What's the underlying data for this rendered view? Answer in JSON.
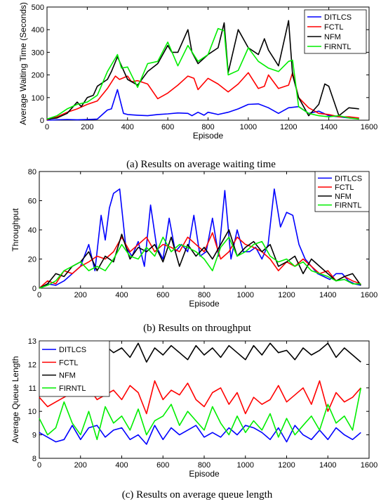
{
  "chart_data": [
    {
      "type": "line",
      "caption": "(a) Results on average waiting time",
      "xlabel": "Episode",
      "ylabel": "Average Waiting Time (Seconds)",
      "xlim": [
        0,
        1600
      ],
      "ylim": [
        0,
        500
      ],
      "xticks": [
        "0",
        "200",
        "400",
        "600",
        "800",
        "1000",
        "1200",
        "1400",
        "1600"
      ],
      "yticks": [
        "0",
        "100",
        "200",
        "300",
        "400",
        "500"
      ],
      "legend_position": "top-right",
      "series": [
        {
          "name": "DITLCS",
          "color": "#0000ff",
          "x": [
            0,
            50,
            100,
            150,
            200,
            250,
            300,
            320,
            350,
            380,
            400,
            450,
            500,
            550,
            600,
            650,
            700,
            720,
            750,
            780,
            800,
            850,
            900,
            950,
            1000,
            1050,
            1100,
            1150,
            1200,
            1250,
            1300,
            1350,
            1400,
            1450,
            1500,
            1550
          ],
          "y": [
            0,
            2,
            3,
            2,
            3,
            5,
            45,
            50,
            135,
            30,
            25,
            22,
            20,
            25,
            28,
            32,
            30,
            20,
            35,
            22,
            35,
            25,
            35,
            50,
            70,
            72,
            55,
            30,
            55,
            60,
            30,
            40,
            20,
            15,
            10,
            8
          ]
        },
        {
          "name": "FCTL",
          "color": "#ff0000",
          "x": [
            0,
            50,
            100,
            150,
            200,
            250,
            300,
            340,
            360,
            400,
            420,
            450,
            500,
            550,
            600,
            650,
            700,
            730,
            750,
            800,
            850,
            900,
            950,
            1000,
            1050,
            1080,
            1100,
            1150,
            1200,
            1220,
            1250,
            1300,
            1350,
            1400,
            1450,
            1500,
            1550
          ],
          "y": [
            2,
            15,
            35,
            50,
            70,
            85,
            140,
            195,
            180,
            195,
            170,
            175,
            160,
            95,
            120,
            155,
            195,
            185,
            135,
            185,
            160,
            125,
            160,
            210,
            140,
            150,
            200,
            140,
            155,
            210,
            100,
            55,
            30,
            25,
            15,
            15,
            10
          ]
        },
        {
          "name": "NFM",
          "color": "#000000",
          "x": [
            0,
            50,
            100,
            150,
            170,
            200,
            230,
            250,
            300,
            320,
            350,
            400,
            450,
            500,
            550,
            600,
            620,
            650,
            700,
            720,
            750,
            800,
            850,
            880,
            900,
            950,
            1000,
            1050,
            1080,
            1100,
            1150,
            1200,
            1220,
            1250,
            1300,
            1350,
            1380,
            1400,
            1450,
            1500,
            1550
          ],
          "y": [
            5,
            10,
            30,
            80,
            60,
            100,
            110,
            150,
            180,
            215,
            280,
            180,
            155,
            215,
            250,
            330,
            300,
            300,
            400,
            300,
            250,
            290,
            320,
            430,
            210,
            400,
            320,
            290,
            360,
            310,
            240,
            440,
            200,
            100,
            20,
            70,
            160,
            150,
            20,
            55,
            50
          ]
        },
        {
          "name": "FIRNTL",
          "color": "#00ee00",
          "x": [
            0,
            50,
            100,
            150,
            200,
            250,
            300,
            350,
            370,
            400,
            450,
            500,
            550,
            600,
            650,
            700,
            750,
            800,
            850,
            880,
            900,
            950,
            1000,
            1050,
            1100,
            1150,
            1200,
            1220,
            1250,
            1300,
            1350,
            1400,
            1450,
            1500,
            1550
          ],
          "y": [
            5,
            20,
            50,
            70,
            80,
            110,
            215,
            290,
            230,
            235,
            145,
            250,
            260,
            345,
            240,
            330,
            260,
            290,
            405,
            395,
            200,
            220,
            320,
            260,
            230,
            215,
            260,
            265,
            60,
            30,
            20,
            15,
            20,
            10,
            5
          ]
        }
      ]
    },
    {
      "type": "line",
      "caption": "(b) Results on throughput",
      "xlabel": "Episode",
      "ylabel": "Throughput",
      "xlim": [
        0,
        1600
      ],
      "ylim": [
        0,
        80
      ],
      "xticks": [
        "0",
        "200",
        "400",
        "600",
        "800",
        "1000",
        "1200",
        "1400",
        "1600"
      ],
      "yticks": [
        "0",
        "20",
        "40",
        "60",
        "80"
      ],
      "legend_position": "top-right",
      "series": [
        {
          "name": "DITLCS",
          "color": "#0000ff",
          "x": [
            0,
            40,
            80,
            120,
            160,
            200,
            240,
            270,
            300,
            320,
            340,
            360,
            390,
            420,
            450,
            480,
            510,
            540,
            570,
            600,
            630,
            660,
            690,
            720,
            750,
            780,
            810,
            840,
            870,
            900,
            930,
            960,
            990,
            1020,
            1050,
            1080,
            1110,
            1140,
            1170,
            1200,
            1230,
            1260,
            1290,
            1320,
            1350,
            1380,
            1410,
            1440,
            1470,
            1500,
            1530,
            1560
          ],
          "y": [
            0,
            3,
            2,
            5,
            10,
            15,
            30,
            12,
            50,
            33,
            55,
            65,
            68,
            28,
            22,
            32,
            15,
            57,
            28,
            20,
            48,
            25,
            30,
            25,
            50,
            22,
            25,
            48,
            22,
            67,
            20,
            40,
            25,
            25,
            28,
            20,
            30,
            68,
            42,
            52,
            50,
            30,
            20,
            15,
            10,
            8,
            6,
            10,
            10,
            5,
            3,
            2
          ]
        },
        {
          "name": "FCTL",
          "color": "#ff0000",
          "x": [
            0,
            40,
            80,
            120,
            160,
            200,
            240,
            280,
            320,
            360,
            400,
            440,
            480,
            520,
            560,
            600,
            640,
            680,
            720,
            760,
            800,
            840,
            880,
            920,
            960,
            1000,
            1040,
            1080,
            1120,
            1160,
            1200,
            1240,
            1280,
            1320,
            1360,
            1400,
            1440,
            1480,
            1520,
            1560
          ],
          "y": [
            0,
            5,
            3,
            12,
            10,
            15,
            18,
            22,
            20,
            25,
            35,
            25,
            30,
            35,
            25,
            30,
            28,
            25,
            35,
            30,
            25,
            38,
            20,
            25,
            35,
            30,
            28,
            25,
            20,
            12,
            18,
            15,
            20,
            15,
            10,
            12,
            5,
            8,
            5,
            3
          ]
        },
        {
          "name": "NFM",
          "color": "#000000",
          "x": [
            0,
            40,
            80,
            120,
            160,
            200,
            240,
            280,
            320,
            360,
            400,
            440,
            480,
            520,
            560,
            600,
            640,
            680,
            720,
            760,
            800,
            840,
            880,
            920,
            960,
            1000,
            1040,
            1080,
            1120,
            1160,
            1200,
            1240,
            1280,
            1320,
            1360,
            1400,
            1440,
            1480,
            1520,
            1560
          ],
          "y": [
            0,
            3,
            10,
            8,
            15,
            18,
            25,
            12,
            22,
            18,
            37,
            20,
            28,
            25,
            30,
            18,
            35,
            15,
            30,
            22,
            28,
            20,
            30,
            40,
            22,
            28,
            32,
            25,
            30,
            15,
            18,
            22,
            10,
            20,
            15,
            10,
            5,
            8,
            10,
            2
          ]
        },
        {
          "name": "FIRNTL",
          "color": "#00ee00",
          "x": [
            0,
            40,
            80,
            120,
            160,
            200,
            240,
            280,
            320,
            360,
            400,
            440,
            480,
            520,
            560,
            600,
            640,
            680,
            720,
            760,
            800,
            840,
            880,
            920,
            960,
            1000,
            1040,
            1080,
            1120,
            1160,
            1200,
            1240,
            1280,
            1320,
            1360,
            1400,
            1440,
            1480,
            1520,
            1560
          ],
          "y": [
            0,
            2,
            5,
            12,
            15,
            18,
            12,
            15,
            12,
            20,
            30,
            22,
            20,
            28,
            22,
            35,
            25,
            30,
            28,
            25,
            20,
            12,
            28,
            35,
            22,
            25,
            30,
            32,
            22,
            18,
            20,
            15,
            18,
            12,
            10,
            8,
            5,
            6,
            3,
            3
          ]
        }
      ]
    },
    {
      "type": "line",
      "caption": "(c) Results on average queue length",
      "xlabel": "Episode",
      "ylabel": "Average Queue Length",
      "xlim": [
        0,
        1600
      ],
      "ylim": [
        8,
        13
      ],
      "xticks": [
        "0",
        "200",
        "400",
        "600",
        "800",
        "1000",
        "1200",
        "1400",
        "1600"
      ],
      "yticks": [
        "8",
        "9",
        "10",
        "11",
        "12",
        "13"
      ],
      "legend_position": "top-left",
      "series": [
        {
          "name": "DITLCS",
          "color": "#0000ff",
          "x": [
            0,
            40,
            80,
            120,
            160,
            200,
            240,
            280,
            320,
            360,
            400,
            440,
            480,
            520,
            560,
            600,
            640,
            680,
            720,
            760,
            800,
            840,
            880,
            920,
            960,
            1000,
            1040,
            1080,
            1120,
            1160,
            1200,
            1240,
            1280,
            1320,
            1360,
            1400,
            1440,
            1480,
            1520,
            1560
          ],
          "y": [
            9.1,
            8.9,
            8.7,
            8.8,
            9.4,
            8.8,
            9.3,
            9.4,
            8.9,
            9.2,
            9.3,
            8.8,
            9.0,
            8.6,
            9.4,
            8.8,
            9.3,
            9.0,
            9.2,
            9.4,
            8.9,
            9.1,
            8.9,
            9.3,
            9.0,
            9.4,
            9.3,
            9.1,
            8.8,
            9.3,
            8.7,
            9.4,
            9.0,
            8.8,
            9.2,
            8.8,
            9.3,
            9.0,
            8.8,
            9.1
          ]
        },
        {
          "name": "FCTL",
          "color": "#ff0000",
          "x": [
            0,
            40,
            80,
            120,
            160,
            200,
            240,
            280,
            320,
            360,
            400,
            440,
            480,
            520,
            560,
            600,
            640,
            680,
            720,
            760,
            800,
            840,
            880,
            920,
            960,
            1000,
            1040,
            1080,
            1120,
            1160,
            1200,
            1240,
            1280,
            1320,
            1360,
            1400,
            1440,
            1480,
            1520,
            1560
          ],
          "y": [
            10.6,
            10.2,
            10.4,
            10.6,
            10.8,
            10.7,
            11.0,
            10.5,
            10.7,
            10.9,
            10.5,
            11.1,
            10.8,
            9.9,
            11.3,
            10.5,
            10.9,
            10.7,
            11.2,
            10.5,
            10.2,
            10.8,
            11.0,
            10.3,
            10.8,
            9.9,
            10.6,
            10.3,
            10.5,
            11.1,
            10.4,
            10.7,
            11.0,
            10.3,
            11.3,
            10.0,
            10.8,
            10.4,
            10.6,
            11.0
          ]
        },
        {
          "name": "NFM",
          "color": "#000000",
          "x": [
            0,
            40,
            80,
            120,
            160,
            200,
            240,
            280,
            320,
            360,
            400,
            440,
            480,
            520,
            560,
            600,
            640,
            680,
            720,
            760,
            800,
            840,
            880,
            920,
            960,
            1000,
            1040,
            1080,
            1120,
            1160,
            1200,
            1240,
            1280,
            1320,
            1360,
            1400,
            1440,
            1480,
            1520,
            1560
          ],
          "y": [
            12.6,
            12.3,
            12.8,
            12.4,
            12.7,
            12.2,
            12.9,
            12.4,
            12.8,
            12.5,
            12.7,
            12.3,
            12.9,
            12.1,
            12.7,
            12.4,
            12.8,
            12.5,
            12.2,
            12.8,
            12.4,
            12.7,
            12.3,
            12.8,
            12.5,
            12.2,
            12.8,
            12.4,
            12.9,
            12.5,
            12.6,
            12.2,
            12.7,
            12.4,
            12.6,
            12.9,
            12.3,
            12.7,
            12.4,
            12.1
          ]
        },
        {
          "name": "FIRNTL",
          "color": "#00ee00",
          "x": [
            0,
            40,
            80,
            120,
            160,
            200,
            240,
            280,
            320,
            360,
            400,
            440,
            480,
            520,
            560,
            600,
            640,
            680,
            720,
            760,
            800,
            840,
            880,
            920,
            960,
            1000,
            1040,
            1080,
            1120,
            1160,
            1200,
            1240,
            1280,
            1320,
            1360,
            1400,
            1440,
            1480,
            1520,
            1560
          ],
          "y": [
            9.7,
            9.0,
            9.3,
            10.4,
            9.5,
            9.0,
            10.0,
            8.8,
            10.2,
            9.5,
            9.8,
            9.2,
            10.1,
            9.0,
            9.6,
            9.8,
            10.3,
            9.4,
            10.0,
            9.6,
            9.2,
            10.2,
            9.5,
            9.0,
            9.8,
            9.1,
            9.6,
            9.2,
            9.9,
            8.9,
            9.7,
            9.0,
            9.4,
            9.8,
            9.2,
            10.3,
            9.5,
            9.8,
            9.2,
            11.0
          ]
        }
      ]
    }
  ]
}
